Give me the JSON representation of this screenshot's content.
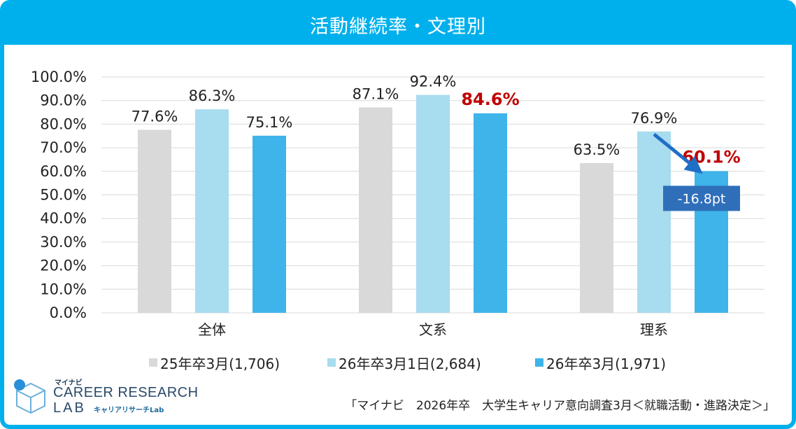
{
  "title": "活動継続率・文理別",
  "colors": {
    "frame": "#00b0ec",
    "series": [
      "#d9d9d9",
      "#a8dcef",
      "#3fb4ea"
    ],
    "highlight_text": "#c00000",
    "annotation_box": "#2f6fba",
    "arrow": "#1f6fc6",
    "grid": "#d9d9d9"
  },
  "chart_data": {
    "type": "bar",
    "title": "活動継続率・文理別",
    "categories": [
      "全体",
      "文系",
      "理系"
    ],
    "series": [
      {
        "name": "25年卒3月(1,706)",
        "values": [
          77.6,
          87.1,
          63.5
        ]
      },
      {
        "name": "26年卒3月1日(2,684)",
        "values": [
          86.3,
          92.4,
          76.9
        ]
      },
      {
        "name": "26年卒3月(1,971)",
        "values": [
          75.1,
          84.6,
          60.1
        ]
      }
    ],
    "data_labels": [
      [
        "77.6%",
        "87.1%",
        "63.5%"
      ],
      [
        "86.3%",
        "92.4%",
        "76.9%"
      ],
      [
        "75.1%",
        "84.6%",
        "60.1%"
      ]
    ],
    "highlighted_labels": [
      [
        2,
        1
      ],
      [
        2,
        2
      ]
    ],
    "ylim": [
      0,
      100
    ],
    "yticks": [
      0,
      10,
      20,
      30,
      40,
      50,
      60,
      70,
      80,
      90,
      100
    ],
    "ytick_labels": [
      "0.0%",
      "10.0%",
      "20.0%",
      "30.0%",
      "40.0%",
      "50.0%",
      "60.0%",
      "70.0%",
      "80.0%",
      "90.0%",
      "100.0%"
    ],
    "grid": true,
    "legend_position": "bottom",
    "annotation": {
      "text": "-16.8pt",
      "category": "理系",
      "from_series": 1,
      "to_series": 2
    }
  },
  "logo": {
    "brand": "マイナビ",
    "line1": "CAREER RESEARCH",
    "line2": "LAB",
    "sub": "キャリアリサーチLab",
    "icon": "cube-logo-icon"
  },
  "source_note": "「マイナビ　2026年卒　大学生キャリア意向調査3月＜就職活動・進路決定＞」"
}
